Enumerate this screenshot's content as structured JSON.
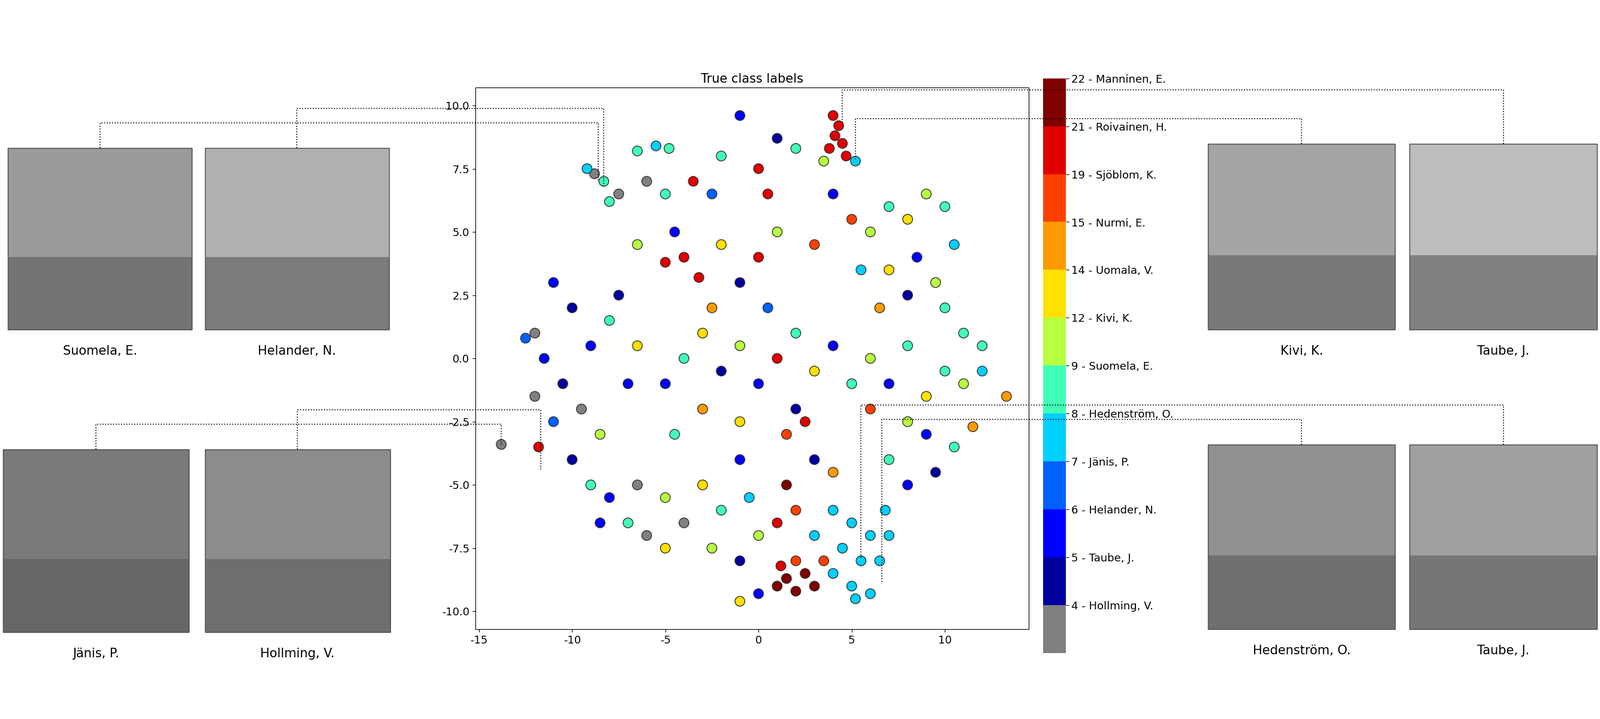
{
  "chart_data": {
    "type": "scatter",
    "title": "True class labels",
    "xlim": [
      -15.2,
      14.5
    ],
    "xticks": [
      -15,
      -10,
      -5,
      0,
      5,
      10
    ],
    "ylim": [
      -10.7,
      10.7
    ],
    "yticks": [
      -10.0,
      -7.5,
      -5.0,
      -2.5,
      0.0,
      2.5,
      5.0,
      7.5,
      10.0
    ],
    "x": [
      4.0,
      4.3,
      4.1,
      4.5,
      3.8,
      4.7,
      3.5,
      5.2,
      -8.8,
      -8.3,
      -9.2,
      -7.5,
      -8.0,
      -6.5,
      -5.5,
      -4.8,
      -6.0,
      -5.0,
      -2.0,
      -1.0,
      0.0,
      1.0,
      2.0,
      -3.5,
      -2.5,
      0.5,
      -4.0,
      -5.0,
      -3.2,
      -4.5,
      -6.5,
      -2.0,
      0.0,
      1.0,
      -1.0,
      -2.5,
      5,
      6,
      7,
      8,
      9,
      10,
      10.5,
      8.5,
      7,
      5.5,
      9.5,
      6.5,
      8,
      10,
      4,
      3,
      -11,
      -10,
      -12,
      -11.5,
      -10.5,
      -12,
      -11,
      -9,
      -8,
      -9.5,
      -8.5,
      -10,
      -12.5,
      -11.8,
      -7,
      -6.5,
      -7.5,
      -13.8,
      -5,
      -4,
      -3,
      -2,
      -1,
      0,
      1,
      2,
      3,
      4,
      -3,
      -1,
      0.5,
      2,
      -4.5,
      1.5,
      5,
      6,
      7,
      8,
      9,
      10,
      11,
      12,
      13.3,
      11.5,
      10.5,
      9,
      8,
      6,
      7,
      9.5,
      11,
      12,
      -8,
      -6.5,
      -5,
      -7,
      -4,
      -3,
      -2,
      -6,
      -8.5,
      -2.5,
      -5,
      -1,
      -9,
      4,
      5,
      6,
      4.5,
      5.5,
      6.5,
      5,
      4,
      6,
      5.2,
      3,
      7,
      6.8,
      3.5,
      1,
      1.5,
      2,
      1.2,
      2.5,
      2,
      3,
      1,
      2,
      1.5,
      -1,
      0,
      -1,
      0,
      -0.5,
      3,
      4,
      8,
      2.5
    ],
    "y": [
      9.6,
      9.2,
      8.8,
      8.5,
      8.3,
      8.0,
      7.8,
      7.8,
      7.3,
      7.0,
      7.5,
      6.5,
      6.2,
      8.2,
      8.4,
      8.3,
      7.0,
      6.5,
      8.0,
      9.6,
      7.5,
      8.7,
      8.3,
      7.0,
      6.5,
      6.5,
      4.0,
      3.8,
      3.2,
      5.0,
      4.5,
      4.5,
      4.0,
      5.0,
      3.0,
      2.0,
      5.5,
      5,
      6,
      5.5,
      6.5,
      6,
      4.5,
      4,
      3.5,
      3.5,
      3,
      2,
      2.5,
      2,
      6.5,
      4.5,
      3,
      2,
      1,
      0,
      -1,
      -1.5,
      -2.5,
      0.5,
      1.5,
      -2,
      -3,
      -4,
      0.8,
      -3.5,
      -1,
      0.5,
      2.5,
      -3.4,
      -1,
      0,
      1,
      -0.5,
      0.5,
      -1,
      0,
      1,
      -0.5,
      0.5,
      -2,
      -2.5,
      2,
      -2,
      -3,
      -3,
      -1,
      0,
      -1,
      0.5,
      -1.5,
      -0.5,
      -1,
      -0.5,
      -1.5,
      -2.7,
      -3.5,
      -3,
      -2.5,
      -2,
      -4,
      -4.5,
      1,
      0.5,
      -5.5,
      -5,
      -5.5,
      -6.5,
      -6.5,
      -5,
      -6,
      -7,
      -6.5,
      -7.5,
      -7.5,
      -4,
      -5,
      -6,
      -6.5,
      -7,
      -7.5,
      -8,
      -8,
      -9,
      -8.5,
      -9.3,
      -9.5,
      -7,
      -7,
      -6,
      -8,
      -9,
      -8.7,
      -9.2,
      -8.2,
      -8.5,
      -8,
      -9,
      -6.5,
      -6,
      -5,
      -8,
      -9.3,
      -9.6,
      -7,
      -5.5,
      -4,
      -4.5,
      -5,
      -2.5
    ],
    "c": [
      10.5,
      10.5,
      10.5,
      10.5,
      10.5,
      10.5,
      6.5,
      4.5,
      0.5,
      5.5,
      4.5,
      0.5,
      5.5,
      5.5,
      4.5,
      5.5,
      0.5,
      5.5,
      5.5,
      2.5,
      10.5,
      1.5,
      5.5,
      10.5,
      3.5,
      10.5,
      10.5,
      10.5,
      10.5,
      2.5,
      6.5,
      7.5,
      10.5,
      6.5,
      1.5,
      8.5,
      9.5,
      6.5,
      5.5,
      7.5,
      6.5,
      5.5,
      4.5,
      2.5,
      7.5,
      4.5,
      6.5,
      8.5,
      1.5,
      5.5,
      2.5,
      9.5,
      2.5,
      1.5,
      0.5,
      2.5,
      1.5,
      0.5,
      3.5,
      2.5,
      5.5,
      0.5,
      6.5,
      1.5,
      3.5,
      10.5,
      2.5,
      7.5,
      1.5,
      0.5,
      2.5,
      5.5,
      7.5,
      1.5,
      6.5,
      2.5,
      10.5,
      5.5,
      7.5,
      2.5,
      8.5,
      7.5,
      3.5,
      1.5,
      5.5,
      9.5,
      5.5,
      6.5,
      2.5,
      5.5,
      7.5,
      5.5,
      6.5,
      4.5,
      8.5,
      8.5,
      5.5,
      2.5,
      6.5,
      9.5,
      5.5,
      1.5,
      5.5,
      5.5,
      2.5,
      0.5,
      6.5,
      5.5,
      0.5,
      7.5,
      5.5,
      0.5,
      2.5,
      6.5,
      7.5,
      2.5,
      5.5,
      4.5,
      4.5,
      4.5,
      4.5,
      4.5,
      4.5,
      4.5,
      4.5,
      4.5,
      4.5,
      4.5,
      4.5,
      4.5,
      9.5,
      11.5,
      11.5,
      11.5,
      10.5,
      11.5,
      9.5,
      11.5,
      10.5,
      9.5,
      11.5,
      1.5,
      2.5,
      7.5,
      6.5,
      4.5,
      1.5,
      8.5,
      2.5,
      10.5
    ],
    "colorbar": {
      "range": [
        0,
        12
      ],
      "colors": [
        "#808080",
        "#00009f",
        "#0000ff",
        "#0060ff",
        "#00d0ff",
        "#40ffb7",
        "#b7ff40",
        "#ffe000",
        "#ff9a00",
        "#ff4000",
        "#e00000",
        "#800000"
      ],
      "ticks": [
        {
          "value": 1,
          "label": "4 - Hollming, V."
        },
        {
          "value": 2,
          "label": "5 - Taube, J."
        },
        {
          "value": 3,
          "label": "6 - Helander, N."
        },
        {
          "value": 4,
          "label": "7 - Jänis, P."
        },
        {
          "value": 5,
          "label": "8 - Hedenström, O."
        },
        {
          "value": 6,
          "label": "9 - Suomela, E."
        },
        {
          "value": 7,
          "label": "12 - Kivi, K."
        },
        {
          "value": 8,
          "label": "14 - Uomala, V."
        },
        {
          "value": 9,
          "label": "15 - Nurmi, E."
        },
        {
          "value": 10,
          "label": "19 - Sjöblom, K."
        },
        {
          "value": 11,
          "label": "21 - Roivainen, H."
        },
        {
          "value": 12,
          "label": "22 - Manninen, E."
        }
      ]
    }
  },
  "images": [
    {
      "caption": "Suomela, E.",
      "points_to": [
        -8.6,
        7.0
      ]
    },
    {
      "caption": "Helander, N.",
      "points_to": [
        -8.3,
        6.8
      ]
    },
    {
      "caption": "Jänis, P.",
      "points_to": [
        -13.8,
        -3.4
      ]
    },
    {
      "caption": "Hollming, V.",
      "points_to": [
        -11.7,
        -4.4
      ]
    },
    {
      "caption": "Kivi, K.",
      "points_to": [
        5.2,
        7.8
      ]
    },
    {
      "caption": "Taube, J.",
      "points_to": [
        4.5,
        9.3
      ]
    },
    {
      "caption": "Hedenström, O.",
      "points_to": [
        6.6,
        -8.9
      ]
    },
    {
      "caption": "Taube, J.",
      "points_to": [
        5.5,
        -7.9
      ]
    }
  ]
}
